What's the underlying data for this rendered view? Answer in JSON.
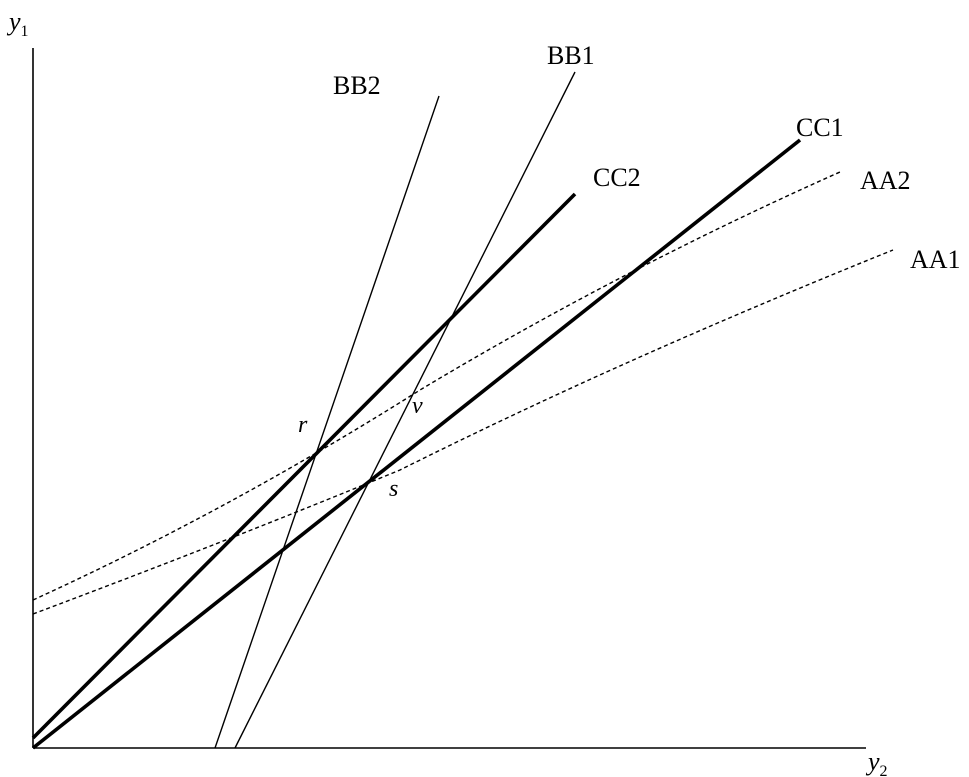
{
  "axes": {
    "y_axis": {
      "symbol": "y",
      "subscript": "1"
    },
    "x_axis": {
      "symbol": "y",
      "subscript": "2"
    }
  },
  "curves": {
    "bb1": "BB1",
    "bb2": "BB2",
    "cc1": "CC1",
    "cc2": "CC2",
    "aa1": "AA1",
    "aa2": "AA2"
  },
  "points": {
    "r": "r",
    "s": "s",
    "v": "v"
  }
}
